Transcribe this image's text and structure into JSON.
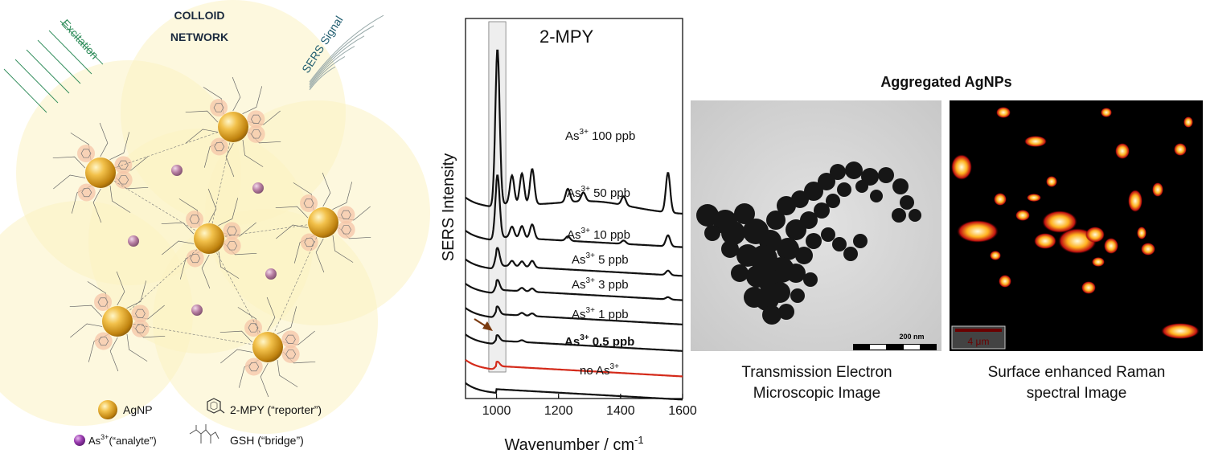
{
  "left_panel": {
    "title_line1": "COLLOID",
    "title_line2": "NETWORK",
    "excitation_label": "Excitation",
    "sers_signal_label": "SERS Signal",
    "legend": {
      "agnp": "AgNP",
      "mpy": "2-MPY (“reporter”)",
      "analyte_prefix": "As",
      "analyte_sup": "3+",
      "analyte_suffix": "(“analyte”)",
      "gsh": "GSH (“bridge”)"
    },
    "colors": {
      "halo": "#fbf3c2",
      "agnp": "#e0a21a",
      "analyte": "#b07a9c",
      "ring": "#f5c6a8",
      "excitation": "#2f8c5a",
      "sers": "#1d5b6e"
    }
  },
  "chart_data": {
    "type": "line",
    "title": "2-MPY",
    "xlabel": "Wavenumber / cm",
    "xlabel_sup": "-1",
    "ylabel": "SERS Intensity",
    "xlim": [
      900,
      1600
    ],
    "xticks": [
      "1000",
      "1200",
      "1400",
      "1600"
    ],
    "highlight_band": [
      975,
      1030
    ],
    "arrow_annotation": "peak at ~1000 cm-1 for As3+ 0.5 ppb",
    "series": [
      {
        "label_prefix": "As",
        "label_sup": "3+",
        "label_suffix": " 100 ppb",
        "color": "#111111",
        "bold": false,
        "offset": 8.9,
        "peaks": [
          [
            1003,
            7.0
          ],
          [
            1050,
            1.3
          ],
          [
            1082,
            1.4
          ],
          [
            1115,
            1.6
          ],
          [
            1230,
            0.6
          ],
          [
            1280,
            0.4
          ],
          [
            1410,
            0.4
          ],
          [
            1553,
            1.8
          ]
        ]
      },
      {
        "label_prefix": "As",
        "label_sup": "3+",
        "label_suffix": " 50 ppb",
        "color": "#111111",
        "bold": false,
        "offset": 7.4,
        "peaks": [
          [
            1003,
            2.8
          ],
          [
            1050,
            0.5
          ],
          [
            1082,
            0.55
          ],
          [
            1115,
            0.65
          ],
          [
            1230,
            0.2
          ],
          [
            1410,
            0.15
          ],
          [
            1553,
            0.5
          ]
        ]
      },
      {
        "label_prefix": "As",
        "label_sup": "3+",
        "label_suffix": " 10 ppb",
        "color": "#111111",
        "bold": false,
        "offset": 6.1,
        "peaks": [
          [
            1003,
            0.8
          ],
          [
            1050,
            0.25
          ],
          [
            1082,
            0.25
          ],
          [
            1115,
            0.3
          ],
          [
            1553,
            0.2
          ]
        ]
      },
      {
        "label_prefix": "As",
        "label_sup": "3+",
        "label_suffix": " 5 ppb",
        "color": "#111111",
        "bold": false,
        "offset": 5.0,
        "peaks": [
          [
            1003,
            0.45
          ],
          [
            1082,
            0.15
          ],
          [
            1115,
            0.15
          ],
          [
            1553,
            0.1
          ]
        ]
      },
      {
        "label_prefix": "As",
        "label_sup": "3+",
        "label_suffix": " 3 ppb",
        "color": "#111111",
        "bold": false,
        "offset": 3.9,
        "peaks": [
          [
            1003,
            0.35
          ],
          [
            1082,
            0.12
          ],
          [
            1115,
            0.12
          ]
        ]
      },
      {
        "label_prefix": "As",
        "label_sup": "3+",
        "label_suffix": " 1 ppb",
        "color": "#111111",
        "bold": false,
        "offset": 2.7,
        "peaks": [
          [
            1003,
            0.25
          ],
          [
            1082,
            0.08
          ]
        ]
      },
      {
        "label_prefix": "As",
        "label_sup": "3+",
        "label_suffix": " 0.5 ppb",
        "color": "#d42a1a",
        "bold": true,
        "offset": 1.55,
        "peaks": [
          [
            1003,
            0.2
          ]
        ]
      },
      {
        "label_prefix": "no As",
        "label_sup": "3+",
        "label_suffix": "",
        "color": "#111111",
        "bold": false,
        "offset": 0.5,
        "peaks": []
      }
    ]
  },
  "right_panel": {
    "heading": "Aggregated AgNPs",
    "tem_caption_line1": "Transmission Electron",
    "tem_caption_line2": "Microscopic Image",
    "tem_scalebar": "200 nm",
    "raman_caption_line1": "Surface enhanced Raman",
    "raman_caption_line2": "spectral Image",
    "raman_scalebar": "4 μm"
  }
}
